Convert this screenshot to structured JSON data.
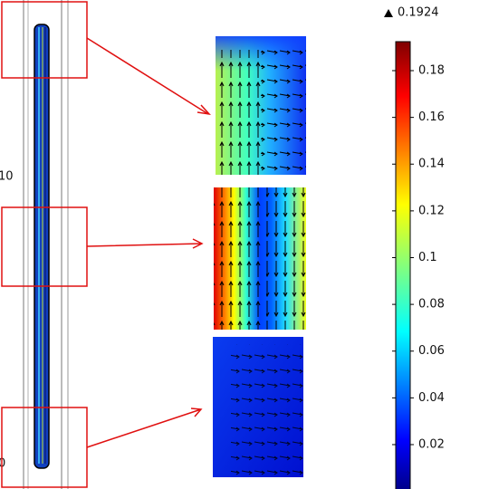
{
  "colorbar": {
    "max_value": 0.1924,
    "ylim": [
      0,
      0.1924
    ],
    "yticks": [
      0.02,
      0.04,
      0.06,
      0.08,
      0.1,
      0.12,
      0.14,
      0.16,
      0.18
    ]
  },
  "axis_labels": [
    "10",
    "0"
  ]
}
